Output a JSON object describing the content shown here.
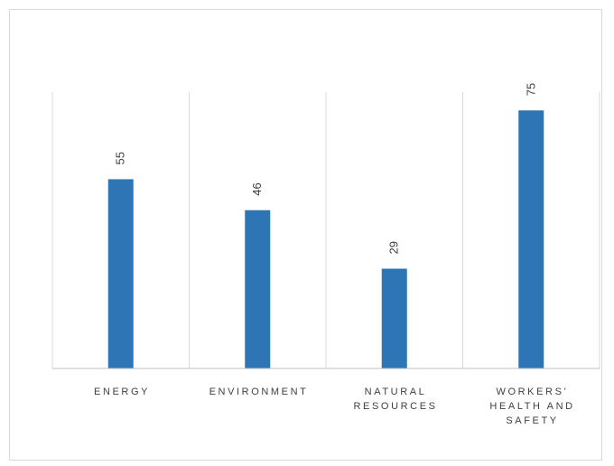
{
  "chart_data": {
    "type": "bar",
    "categories": [
      "ENERGY",
      "ENVIRONMENT",
      "NATURAL RESOURCES",
      "WORKERS' HEALTH AND SAFETY"
    ],
    "category_lines": [
      [
        "ENERGY"
      ],
      [
        "ENVIRONMENT"
      ],
      [
        "NATURAL",
        "RESOURCES"
      ],
      [
        "WORKERS’",
        "HEALTH AND",
        "SAFETY"
      ]
    ],
    "values": [
      55,
      46,
      29,
      75
    ],
    "data_labels": [
      "55",
      "46",
      "29",
      "75"
    ],
    "title": "",
    "xlabel": "",
    "ylabel": "",
    "ylim": [
      0,
      80
    ],
    "grid": "vertical separators between categories",
    "legend": "none",
    "bar_color": "#2e75b6"
  }
}
